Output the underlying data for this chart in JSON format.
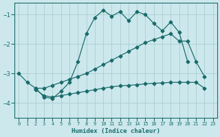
{
  "xlabel": "Humidex (Indice chaleur)",
  "background_color": "#cce8ec",
  "grid_color": "#aacdd2",
  "line_color": "#1a6b6b",
  "xlim": [
    -0.5,
    23.5
  ],
  "ylim": [
    -4.5,
    -0.6
  ],
  "yticks": [
    -4,
    -3,
    -2,
    -1
  ],
  "xticks": [
    0,
    1,
    2,
    3,
    4,
    5,
    6,
    7,
    8,
    9,
    10,
    11,
    12,
    13,
    14,
    15,
    16,
    17,
    18,
    19,
    20,
    21,
    22,
    23
  ],
  "line1_x": [
    0,
    1,
    2,
    3,
    4,
    5,
    6,
    7,
    8,
    9,
    10,
    11,
    12,
    13,
    14,
    15,
    16,
    17,
    18,
    19,
    20
  ],
  "line1_y": [
    -3.0,
    -3.3,
    -3.5,
    -3.8,
    -3.85,
    -3.6,
    -3.3,
    -2.6,
    -1.65,
    -1.1,
    -0.85,
    -1.05,
    -0.9,
    -1.2,
    -0.9,
    -1.0,
    -1.3,
    -1.55,
    -1.25,
    -1.6,
    -2.6
  ],
  "line2_x": [
    2,
    3,
    4,
    5,
    6,
    7,
    8,
    9,
    10,
    11,
    12,
    13,
    14,
    15,
    16,
    17,
    18,
    19,
    20,
    21,
    22
  ],
  "line2_y": [
    -3.5,
    -3.5,
    -3.4,
    -3.3,
    -3.2,
    -3.1,
    -3.0,
    -2.85,
    -2.7,
    -2.55,
    -2.4,
    -2.25,
    -2.1,
    -1.95,
    -1.85,
    -1.75,
    -1.65,
    -1.9,
    -1.9,
    -2.6,
    -3.1
  ],
  "line3_x": [
    2,
    3,
    4,
    5,
    6,
    7,
    8,
    9,
    10,
    11,
    12,
    13,
    14,
    15,
    16,
    17,
    18,
    19,
    20,
    21,
    22
  ],
  "line3_y": [
    -3.55,
    -3.75,
    -3.8,
    -3.75,
    -3.7,
    -3.65,
    -3.6,
    -3.55,
    -3.5,
    -3.45,
    -3.42,
    -3.4,
    -3.38,
    -3.35,
    -3.33,
    -3.32,
    -3.3,
    -3.3,
    -3.3,
    -3.3,
    -3.5
  ]
}
